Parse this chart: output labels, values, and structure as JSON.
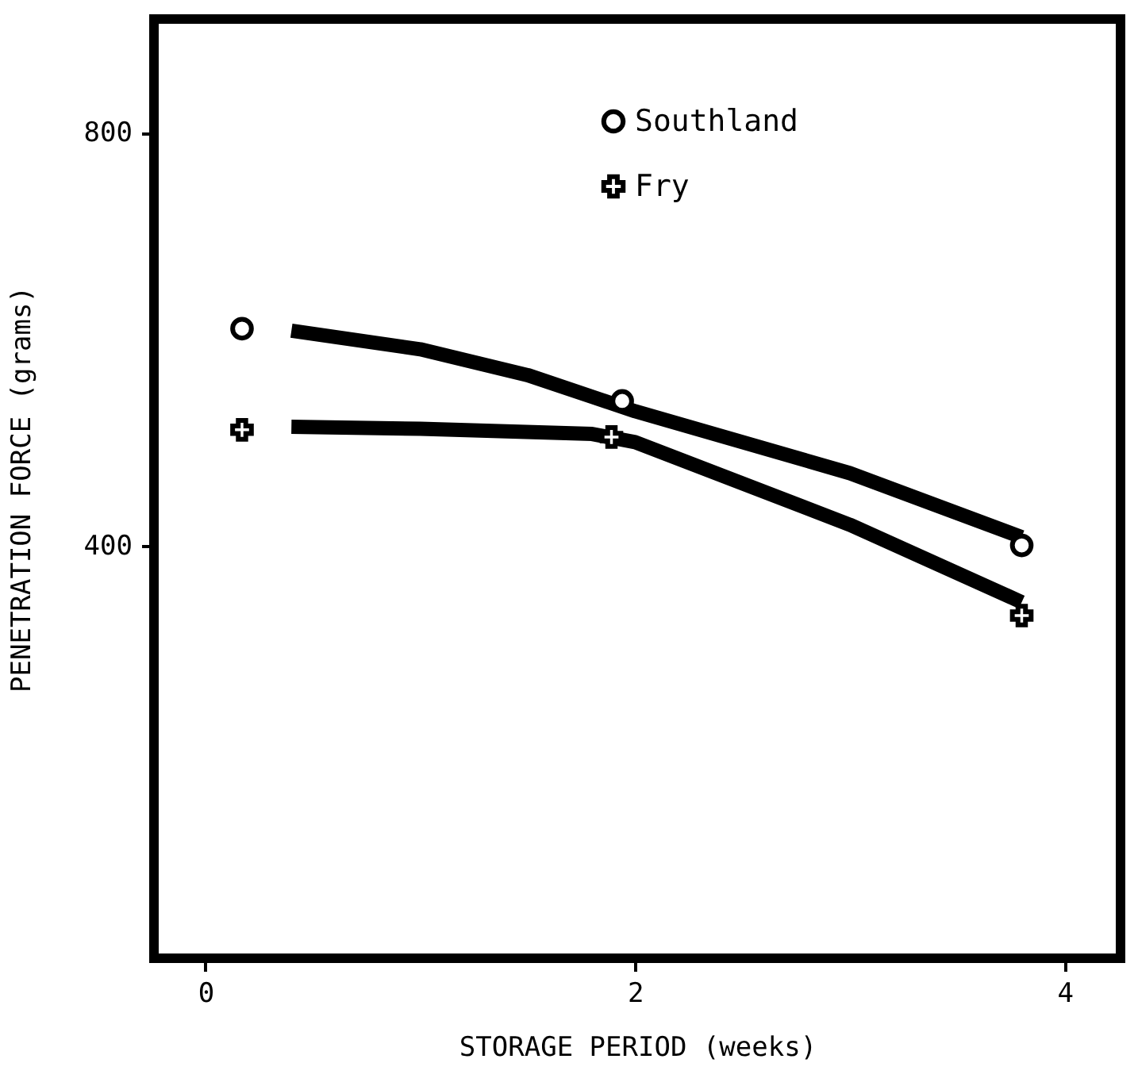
{
  "chart_data": {
    "type": "scatter",
    "xlabel": "STORAGE PERIOD (weeks)",
    "ylabel": "PENETRATION FORCE (grams)",
    "xlim": [
      -0.24,
      4.26
    ],
    "xticks": [
      0,
      2,
      4
    ],
    "ylim": [
      0,
      910
    ],
    "yticks": [
      400,
      800
    ],
    "grid": false,
    "legend": "top",
    "series": [
      {
        "name": "Southland",
        "marker": "circle",
        "color": "#000000",
        "x": [
          0.17,
          1.94,
          3.8
        ],
        "values": [
          610,
          540,
          400
        ]
      },
      {
        "name": "Fry",
        "marker": "cross",
        "color": "#000000",
        "x": [
          0.17,
          1.89,
          3.8
        ],
        "values": [
          512,
          505,
          332
        ]
      },
      {
        "type": "line",
        "color": "#000000",
        "line_style": "solid",
        "x": [
          0.4,
          1.0,
          1.5,
          2.0,
          3.0,
          3.8
        ],
        "values": [
          608,
          590,
          565,
          530,
          470,
          408
        ]
      },
      {
        "type": "line",
        "color": "#000000",
        "line_style": "solid",
        "x": [
          0.4,
          1.0,
          1.8,
          2.0,
          3.0,
          3.8
        ],
        "values": [
          515,
          513,
          508,
          500,
          420,
          345
        ]
      }
    ]
  }
}
